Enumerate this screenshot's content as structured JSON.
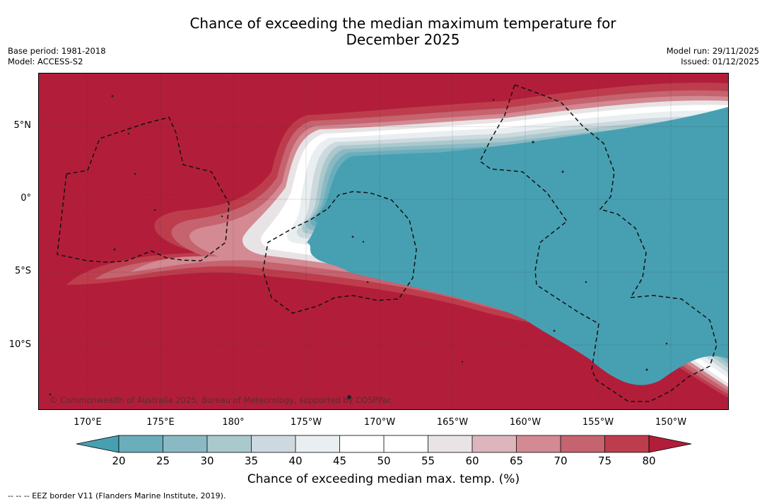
{
  "title_line1": "Chance of exceeding the median maximum temperature for",
  "title_line2": "December 2025",
  "base_period": "Base period: 1981-2018",
  "model": "Model: ACCESS-S2",
  "model_run": "Model run: 29/11/2025",
  "issued": "Issued: 01/12/2025",
  "lat_labels": [
    "5°N",
    "0°",
    "5°S",
    "10°S"
  ],
  "lon_labels": [
    "170°E",
    "175°E",
    "180°",
    "175°W",
    "170°W",
    "165°W",
    "160°W",
    "155°W",
    "150°W"
  ],
  "copyright": "© Commonwealth of Australia 2025, Bureau of Meteorology, supported by COSPPac",
  "colorbar": {
    "ticks": [
      "20",
      "25",
      "30",
      "35",
      "40",
      "45",
      "50",
      "55",
      "60",
      "65",
      "70",
      "75",
      "80"
    ],
    "colors": [
      "#47a0b2",
      "#6aaebc",
      "#8ab9c4",
      "#aac9cd",
      "#cdd9de",
      "#e9eef1",
      "#ffffff",
      "#ffffff",
      "#e8e4e6",
      "#dcb6bc",
      "#d38a92",
      "#c5636f",
      "#bd3d4d",
      "#b21e3a"
    ],
    "label": "Chance of exceeding median max. temp. (%)"
  },
  "footnote": "-- -- -- EEZ border V11 (Flanders Marine Institute, 2019)."
}
